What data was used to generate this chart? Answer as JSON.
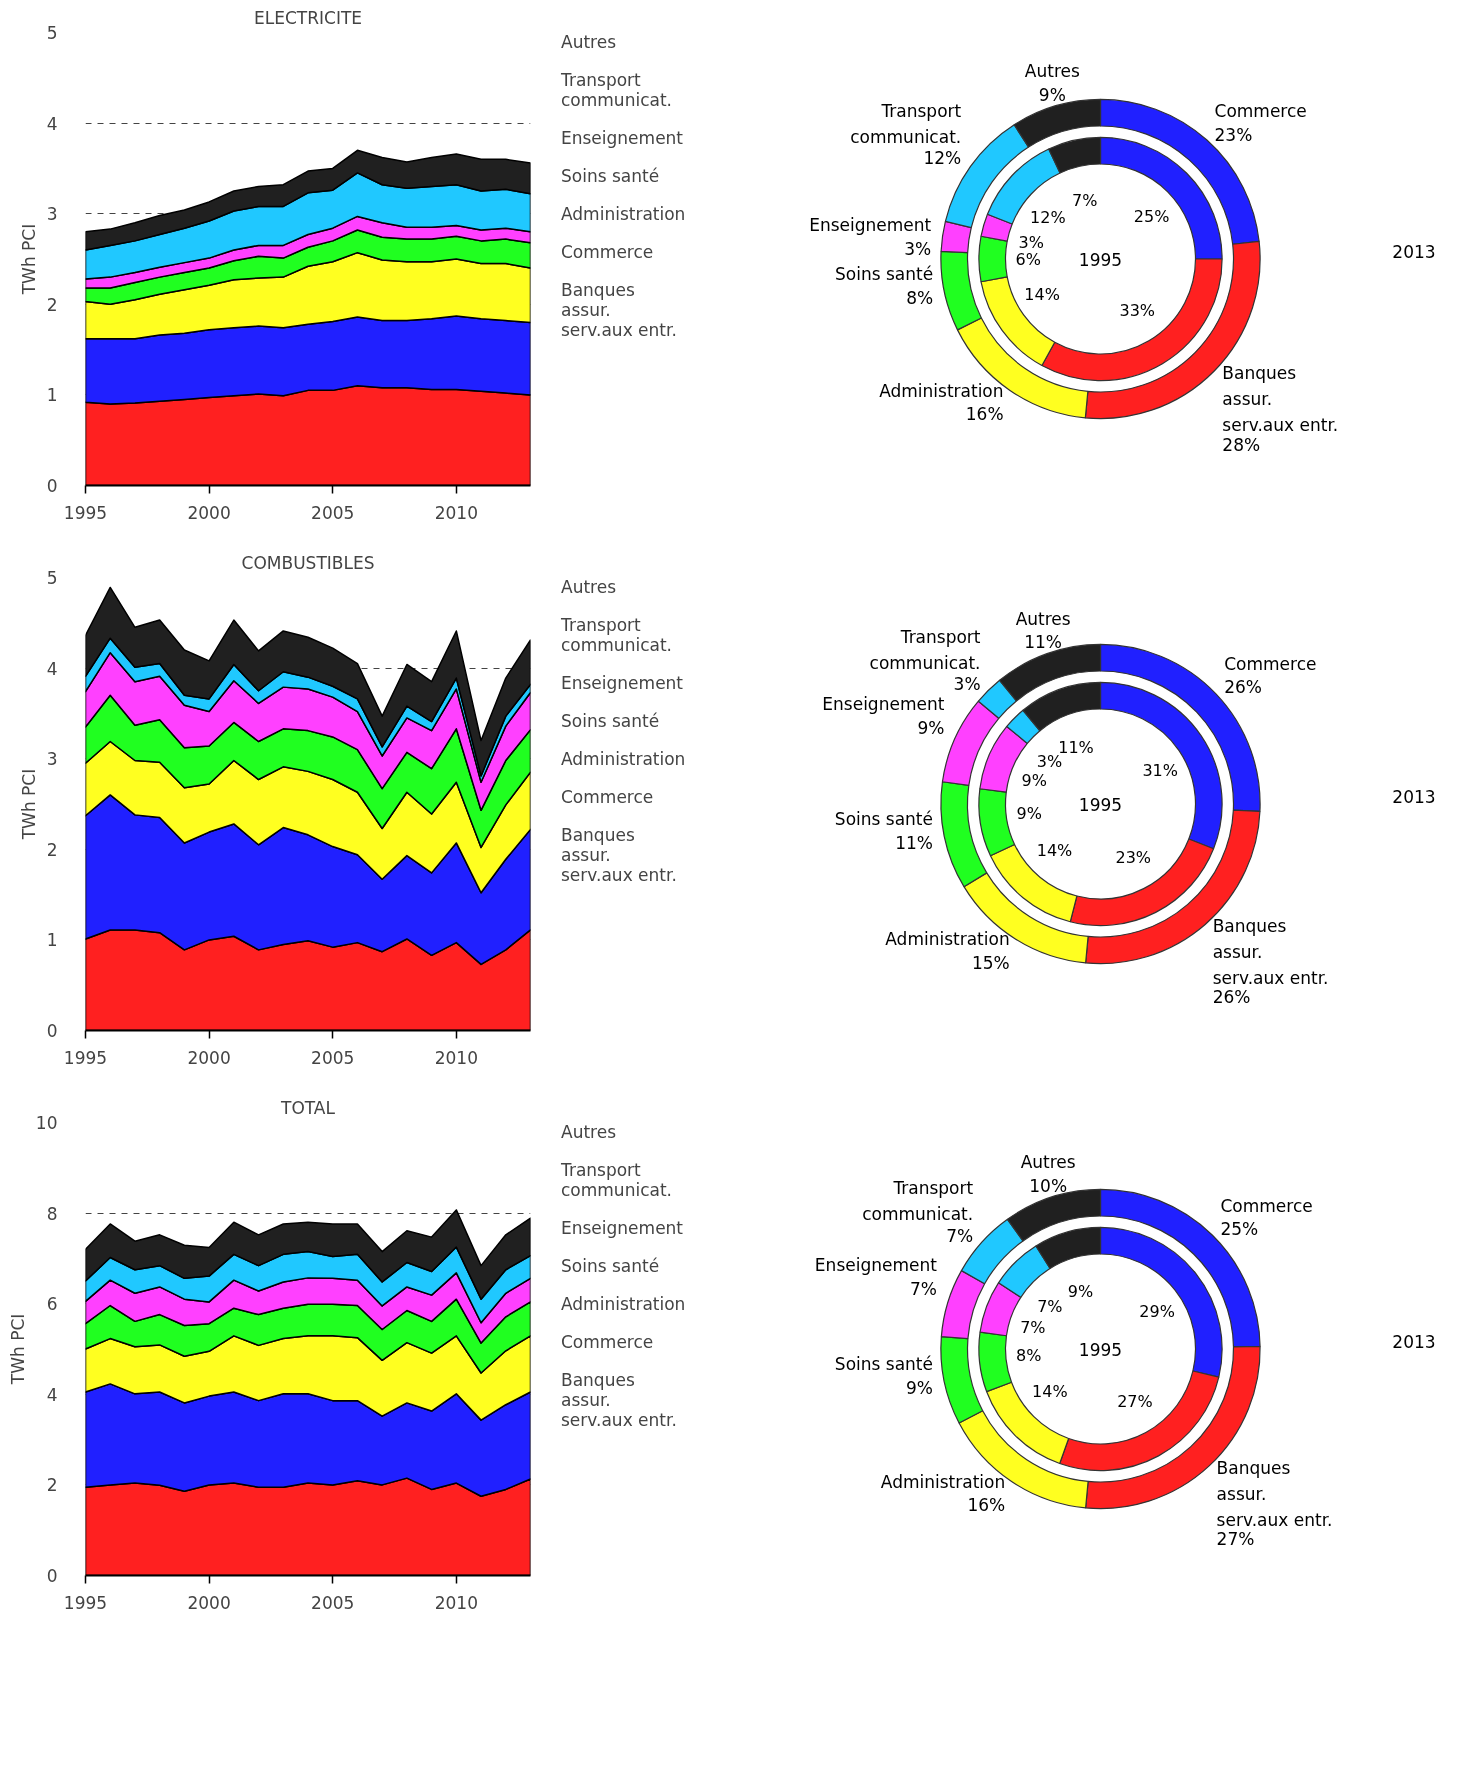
{
  "chart_data": [
    {
      "type": "area",
      "title": "ELECTRICITE",
      "ylabel": "TWh PCI",
      "stacked": true,
      "grid": "y",
      "legend": "right",
      "xlim": [
        1995,
        2013
      ],
      "ylim": [
        0,
        5
      ],
      "xticks": [
        1995,
        2000,
        2005,
        2010
      ],
      "yticks": [
        0,
        1,
        2,
        3,
        4,
        5
      ],
      "x": [
        1995,
        1996,
        1997,
        1998,
        1999,
        2000,
        2001,
        2002,
        2003,
        2004,
        2005,
        2006,
        2007,
        2008,
        2009,
        2010,
        2011,
        2012,
        2013
      ],
      "series": [
        {
          "name": "Banques\nassur.\nserv.aux entr.",
          "color": "#ff2020",
          "values": [
            0.92,
            0.9,
            0.91,
            0.93,
            0.95,
            0.97,
            0.99,
            1.01,
            0.99,
            1.05,
            1.05,
            1.1,
            1.08,
            1.08,
            1.06,
            1.06,
            1.04,
            1.02,
            1.0
          ]
        },
        {
          "name": "Commerce",
          "color": "#2020ff",
          "values": [
            0.7,
            0.72,
            0.71,
            0.73,
            0.73,
            0.75,
            0.75,
            0.75,
            0.75,
            0.73,
            0.76,
            0.76,
            0.74,
            0.74,
            0.78,
            0.81,
            0.8,
            0.8,
            0.8
          ]
        },
        {
          "name": "Administration",
          "color": "#ffff20",
          "values": [
            0.41,
            0.38,
            0.43,
            0.45,
            0.48,
            0.49,
            0.53,
            0.53,
            0.56,
            0.64,
            0.66,
            0.71,
            0.67,
            0.65,
            0.63,
            0.63,
            0.61,
            0.63,
            0.6
          ]
        },
        {
          "name": "Soins santé",
          "color": "#20ff20",
          "values": [
            0.15,
            0.18,
            0.19,
            0.19,
            0.19,
            0.19,
            0.21,
            0.24,
            0.21,
            0.21,
            0.23,
            0.25,
            0.25,
            0.25,
            0.25,
            0.25,
            0.25,
            0.27,
            0.28
          ]
        },
        {
          "name": "Enseignement",
          "color": "#ff40ff",
          "values": [
            0.1,
            0.12,
            0.11,
            0.11,
            0.11,
            0.11,
            0.12,
            0.12,
            0.14,
            0.14,
            0.14,
            0.15,
            0.16,
            0.13,
            0.13,
            0.12,
            0.12,
            0.12,
            0.12
          ]
        },
        {
          "name": "Transport\ncommunicat.",
          "color": "#20c8ff",
          "values": [
            0.32,
            0.35,
            0.35,
            0.36,
            0.38,
            0.41,
            0.43,
            0.43,
            0.43,
            0.46,
            0.42,
            0.48,
            0.42,
            0.43,
            0.45,
            0.45,
            0.43,
            0.43,
            0.42
          ]
        },
        {
          "name": "Autres",
          "color": "#202020",
          "values": [
            0.2,
            0.18,
            0.2,
            0.21,
            0.2,
            0.21,
            0.22,
            0.22,
            0.24,
            0.24,
            0.24,
            0.25,
            0.3,
            0.29,
            0.32,
            0.34,
            0.35,
            0.33,
            0.34
          ]
        }
      ]
    },
    {
      "type": "donut",
      "categories": [
        "Commerce",
        "Banques\nassur.\nserv.aux entr.",
        "Administration",
        "Soins santé",
        "Enseignement",
        "Transport\ncommunicat.",
        "Autres"
      ],
      "colors": [
        "#2020ff",
        "#ff2020",
        "#ffff20",
        "#20ff20",
        "#ff40ff",
        "#20c8ff",
        "#202020"
      ],
      "series": [
        {
          "name": "1995",
          "values": [
            25,
            33,
            14,
            6,
            3,
            12,
            7
          ],
          "value_labels": [
            "25%",
            "33%",
            "14%",
            "6%",
            "3%",
            "12%",
            "7%"
          ]
        },
        {
          "name": "2013",
          "values": [
            23,
            28,
            16,
            8,
            3,
            12,
            9
          ],
          "value_labels": [
            "23%",
            "28%",
            "16%",
            "8%",
            "3%",
            "12%",
            "9%"
          ]
        }
      ]
    },
    {
      "type": "area",
      "title": "COMBUSTIBLES",
      "ylabel": "TWh PCI",
      "stacked": true,
      "grid": "y",
      "legend": "right",
      "xlim": [
        1995,
        2013
      ],
      "ylim": [
        0,
        5
      ],
      "xticks": [
        1995,
        2000,
        2005,
        2010
      ],
      "yticks": [
        0,
        1,
        2,
        3,
        4,
        5
      ],
      "x": [
        1995,
        1996,
        1997,
        1998,
        1999,
        2000,
        2001,
        2002,
        2003,
        2004,
        2005,
        2006,
        2007,
        2008,
        2009,
        2010,
        2011,
        2012,
        2013
      ],
      "series": [
        {
          "name": "Banques\nassur.\nserv.aux entr.",
          "color": "#ff2020",
          "values": [
            1.01,
            1.11,
            1.11,
            1.08,
            0.89,
            1.0,
            1.04,
            0.89,
            0.95,
            0.99,
            0.92,
            0.97,
            0.87,
            1.01,
            0.83,
            0.97,
            0.73,
            0.89,
            1.11
          ]
        },
        {
          "name": "Commerce",
          "color": "#2020ff",
          "values": [
            1.36,
            1.49,
            1.27,
            1.27,
            1.18,
            1.19,
            1.24,
            1.16,
            1.29,
            1.17,
            1.11,
            0.97,
            0.8,
            0.92,
            0.91,
            1.1,
            0.79,
            1.0,
            1.11
          ]
        },
        {
          "name": "Administration",
          "color": "#ffff20",
          "values": [
            0.58,
            0.59,
            0.6,
            0.61,
            0.61,
            0.53,
            0.7,
            0.72,
            0.67,
            0.7,
            0.74,
            0.69,
            0.56,
            0.7,
            0.65,
            0.67,
            0.5,
            0.6,
            0.63
          ]
        },
        {
          "name": "Soins santé",
          "color": "#20ff20",
          "values": [
            0.4,
            0.51,
            0.39,
            0.47,
            0.44,
            0.42,
            0.42,
            0.42,
            0.42,
            0.45,
            0.47,
            0.47,
            0.44,
            0.44,
            0.5,
            0.59,
            0.41,
            0.49,
            0.47
          ]
        },
        {
          "name": "Enseignement",
          "color": "#ff40ff",
          "values": [
            0.39,
            0.47,
            0.48,
            0.48,
            0.47,
            0.38,
            0.46,
            0.42,
            0.46,
            0.46,
            0.44,
            0.42,
            0.36,
            0.38,
            0.42,
            0.44,
            0.31,
            0.38,
            0.41
          ]
        },
        {
          "name": "Transport\ncommunicat.",
          "color": "#20c8ff",
          "values": [
            0.17,
            0.16,
            0.16,
            0.14,
            0.11,
            0.14,
            0.18,
            0.14,
            0.17,
            0.13,
            0.12,
            0.14,
            0.1,
            0.13,
            0.1,
            0.12,
            0.07,
            0.11,
            0.09
          ]
        },
        {
          "name": "Autres",
          "color": "#202020",
          "values": [
            0.45,
            0.56,
            0.44,
            0.48,
            0.5,
            0.42,
            0.49,
            0.44,
            0.45,
            0.44,
            0.42,
            0.39,
            0.34,
            0.46,
            0.44,
            0.52,
            0.39,
            0.42,
            0.49
          ]
        }
      ]
    },
    {
      "type": "donut",
      "categories": [
        "Commerce",
        "Banques\nassur.\nserv.aux entr.",
        "Administration",
        "Soins santé",
        "Enseignement",
        "Transport\ncommunicat.",
        "Autres"
      ],
      "colors": [
        "#2020ff",
        "#ff2020",
        "#ffff20",
        "#20ff20",
        "#ff40ff",
        "#20c8ff",
        "#202020"
      ],
      "series": [
        {
          "name": "1995",
          "values": [
            31,
            23,
            14,
            9,
            9,
            3,
            11
          ],
          "value_labels": [
            "31%",
            "23%",
            "14%",
            "9%",
            "9%",
            "3%",
            "11%"
          ]
        },
        {
          "name": "2013",
          "values": [
            26,
            26,
            15,
            11,
            9,
            3,
            11
          ],
          "value_labels": [
            "26%",
            "26%",
            "15%",
            "11%",
            "9%",
            "3%",
            "11%"
          ]
        }
      ]
    },
    {
      "type": "area",
      "title": "TOTAL",
      "ylabel": "TWh PCI",
      "stacked": true,
      "grid": "y",
      "legend": "right",
      "xlim": [
        1995,
        2013
      ],
      "ylim": [
        0,
        10
      ],
      "xticks": [
        1995,
        2000,
        2005,
        2010
      ],
      "yticks": [
        0,
        2,
        4,
        6,
        8,
        10
      ],
      "x": [
        1995,
        1996,
        1997,
        1998,
        1999,
        2000,
        2001,
        2002,
        2003,
        2004,
        2005,
        2006,
        2007,
        2008,
        2009,
        2010,
        2011,
        2012,
        2013
      ],
      "series": [
        {
          "name": "Banques\nassur.\nserv.aux entr.",
          "color": "#ff2020",
          "values": [
            1.95,
            2.0,
            2.04,
            1.99,
            1.86,
            2.0,
            2.04,
            1.95,
            1.95,
            2.04,
            2.0,
            2.09,
            2.0,
            2.15,
            1.9,
            2.04,
            1.75,
            1.9,
            2.13
          ]
        },
        {
          "name": "Commerce",
          "color": "#2020ff",
          "values": [
            2.1,
            2.23,
            1.97,
            2.06,
            1.95,
            1.96,
            2.01,
            1.91,
            2.06,
            1.97,
            1.86,
            1.77,
            1.52,
            1.66,
            1.73,
            1.97,
            1.68,
            1.87,
            1.92
          ]
        },
        {
          "name": "Administration",
          "color": "#ffff20",
          "values": [
            0.95,
            1.0,
            1.04,
            1.04,
            1.03,
            0.99,
            1.24,
            1.22,
            1.22,
            1.28,
            1.43,
            1.39,
            1.23,
            1.33,
            1.28,
            1.28,
            1.04,
            1.19,
            1.24
          ]
        },
        {
          "name": "Soins santé",
          "color": "#20ff20",
          "values": [
            0.56,
            0.73,
            0.56,
            0.67,
            0.68,
            0.61,
            0.61,
            0.68,
            0.67,
            0.7,
            0.7,
            0.71,
            0.68,
            0.71,
            0.7,
            0.81,
            0.66,
            0.75,
            0.75
          ]
        },
        {
          "name": "Enseignement",
          "color": "#ff40ff",
          "values": [
            0.49,
            0.56,
            0.62,
            0.61,
            0.58,
            0.48,
            0.62,
            0.52,
            0.58,
            0.58,
            0.57,
            0.56,
            0.52,
            0.52,
            0.58,
            0.58,
            0.45,
            0.52,
            0.52
          ]
        },
        {
          "name": "Transport\ncommunicat.",
          "color": "#20c8ff",
          "values": [
            0.45,
            0.5,
            0.52,
            0.47,
            0.46,
            0.57,
            0.57,
            0.56,
            0.61,
            0.58,
            0.48,
            0.57,
            0.53,
            0.54,
            0.52,
            0.57,
            0.52,
            0.52,
            0.5
          ]
        },
        {
          "name": "Autres",
          "color": "#202020",
          "values": [
            0.7,
            0.74,
            0.63,
            0.68,
            0.73,
            0.63,
            0.71,
            0.68,
            0.67,
            0.65,
            0.72,
            0.67,
            0.67,
            0.7,
            0.76,
            0.82,
            0.74,
            0.77,
            0.83
          ]
        }
      ]
    },
    {
      "type": "donut",
      "categories": [
        "Commerce",
        "Banques\nassur.\nserv.aux entr.",
        "Administration",
        "Soins santé",
        "Enseignement",
        "Transport\ncommunicat.",
        "Autres"
      ],
      "colors": [
        "#2020ff",
        "#ff2020",
        "#ffff20",
        "#20ff20",
        "#ff40ff",
        "#20c8ff",
        "#202020"
      ],
      "series": [
        {
          "name": "1995",
          "values": [
            29,
            27,
            14,
            8,
            7,
            7,
            9
          ],
          "value_labels": [
            "29%",
            "27%",
            "14%",
            "8%",
            "7%",
            "7%",
            "9%"
          ]
        },
        {
          "name": "2013",
          "values": [
            25,
            27,
            16,
            9,
            7,
            7,
            10
          ],
          "value_labels": [
            "25%",
            "27%",
            "16%",
            "9%",
            "7%",
            "7%",
            "10%"
          ]
        }
      ]
    }
  ]
}
